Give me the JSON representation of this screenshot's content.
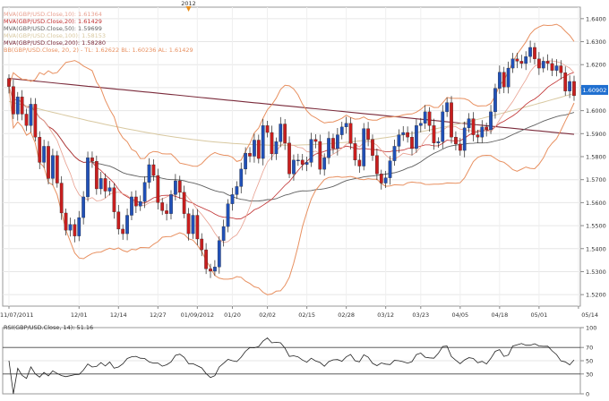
{
  "chart_data": [
    {
      "type": "candlestick",
      "symbol": "GBP/USD",
      "period_marker": "2012",
      "legend": [
        {
          "label": "MVA(GBP/USD.Close,10): 1.61364",
          "color": "#e8a090"
        },
        {
          "label": "MVA(GBP/USD.Close,20): 1.61429",
          "color": "#c03030"
        },
        {
          "label": "MVA(GBP/USD.Close,50): 1.59699",
          "color": "#606060"
        },
        {
          "label": "MVA(GBP/USD.Close,100): 1.58153",
          "color": "#d8c8a0"
        },
        {
          "label": "MVA(GBP/USD.Close,200): 1.58280",
          "color": "#7a2a3a"
        },
        {
          "label": "BB(GBP/USD.Close, 20, 2) - TL: 1.62622  BL: 1.60236  AL: 1.61429",
          "color": "#e89060"
        }
      ],
      "last_price": "1.60902",
      "ylim": [
        1.515,
        1.645
      ],
      "y_ticks": [
        "1.6400",
        "1.6300",
        "1.6200",
        "1.6100",
        "1.6000",
        "1.5900",
        "1.5800",
        "1.5700",
        "1.5600",
        "1.5500",
        "1.5400",
        "1.5300",
        "1.5200"
      ],
      "x_ticks": [
        "11/07/2011",
        "12/01",
        "12/14",
        "12/27",
        "01/09/2012",
        "01/20",
        "02/02",
        "02/15",
        "02/28",
        "03/12",
        "03/23",
        "04/05",
        "04/18",
        "05/01",
        "05/14"
      ],
      "x_tick_index": [
        0,
        16,
        25,
        34,
        43,
        51,
        59,
        68,
        77,
        86,
        94,
        103,
        112,
        121,
        130
      ],
      "close": [
        1.6105,
        1.5985,
        1.606,
        1.5985,
        1.5935,
        1.6028,
        1.5885,
        1.5775,
        1.5845,
        1.5705,
        1.5805,
        1.5685,
        1.5555,
        1.548,
        1.5505,
        1.5455,
        1.5535,
        1.5625,
        1.5795,
        1.578,
        1.566,
        1.5705,
        1.565,
        1.5665,
        1.556,
        1.5485,
        1.5465,
        1.5545,
        1.5625,
        1.5585,
        1.5605,
        1.5688,
        1.5765,
        1.5718,
        1.56,
        1.5565,
        1.5552,
        1.5635,
        1.5695,
        1.5645,
        1.5552,
        1.5465,
        1.5545,
        1.5442,
        1.5395,
        1.5312,
        1.5302,
        1.532,
        1.5435,
        1.5496,
        1.5595,
        1.5635,
        1.567,
        1.5746,
        1.5815,
        1.5802,
        1.5872,
        1.5792,
        1.5935,
        1.5905,
        1.5812,
        1.5865,
        1.5942,
        1.5859,
        1.5725,
        1.5785,
        1.5785,
        1.5766,
        1.5775,
        1.5875,
        1.5866,
        1.5745,
        1.5795,
        1.588,
        1.5835,
        1.5895,
        1.5929,
        1.5945,
        1.5857,
        1.5785,
        1.5759,
        1.5922,
        1.5875,
        1.5805,
        1.5725,
        1.5685,
        1.5708,
        1.5782,
        1.5845,
        1.5895,
        1.5905,
        1.5885,
        1.5835,
        1.5935,
        1.5945,
        1.5995,
        1.5935,
        1.5859,
        1.5865,
        1.5995,
        1.6035,
        1.5885,
        1.5855,
        1.5827,
        1.5925,
        1.5965,
        1.5895,
        1.5885,
        1.5929,
        1.5917,
        1.5995,
        1.6097,
        1.6167,
        1.6103,
        1.6185,
        1.6225,
        1.6215,
        1.6205,
        1.6235,
        1.6275,
        1.6225,
        1.6185,
        1.6215,
        1.6205,
        1.6175,
        1.6195,
        1.6165,
        1.6085,
        1.6127,
        1.6065
      ],
      "series": [
        {
          "name": "RSI(GBP/USD.Close, 14): 51.16",
          "last": 51.16
        }
      ],
      "rsi_ticks": [
        "100",
        "70",
        "50",
        "30",
        "0"
      ]
    }
  ]
}
